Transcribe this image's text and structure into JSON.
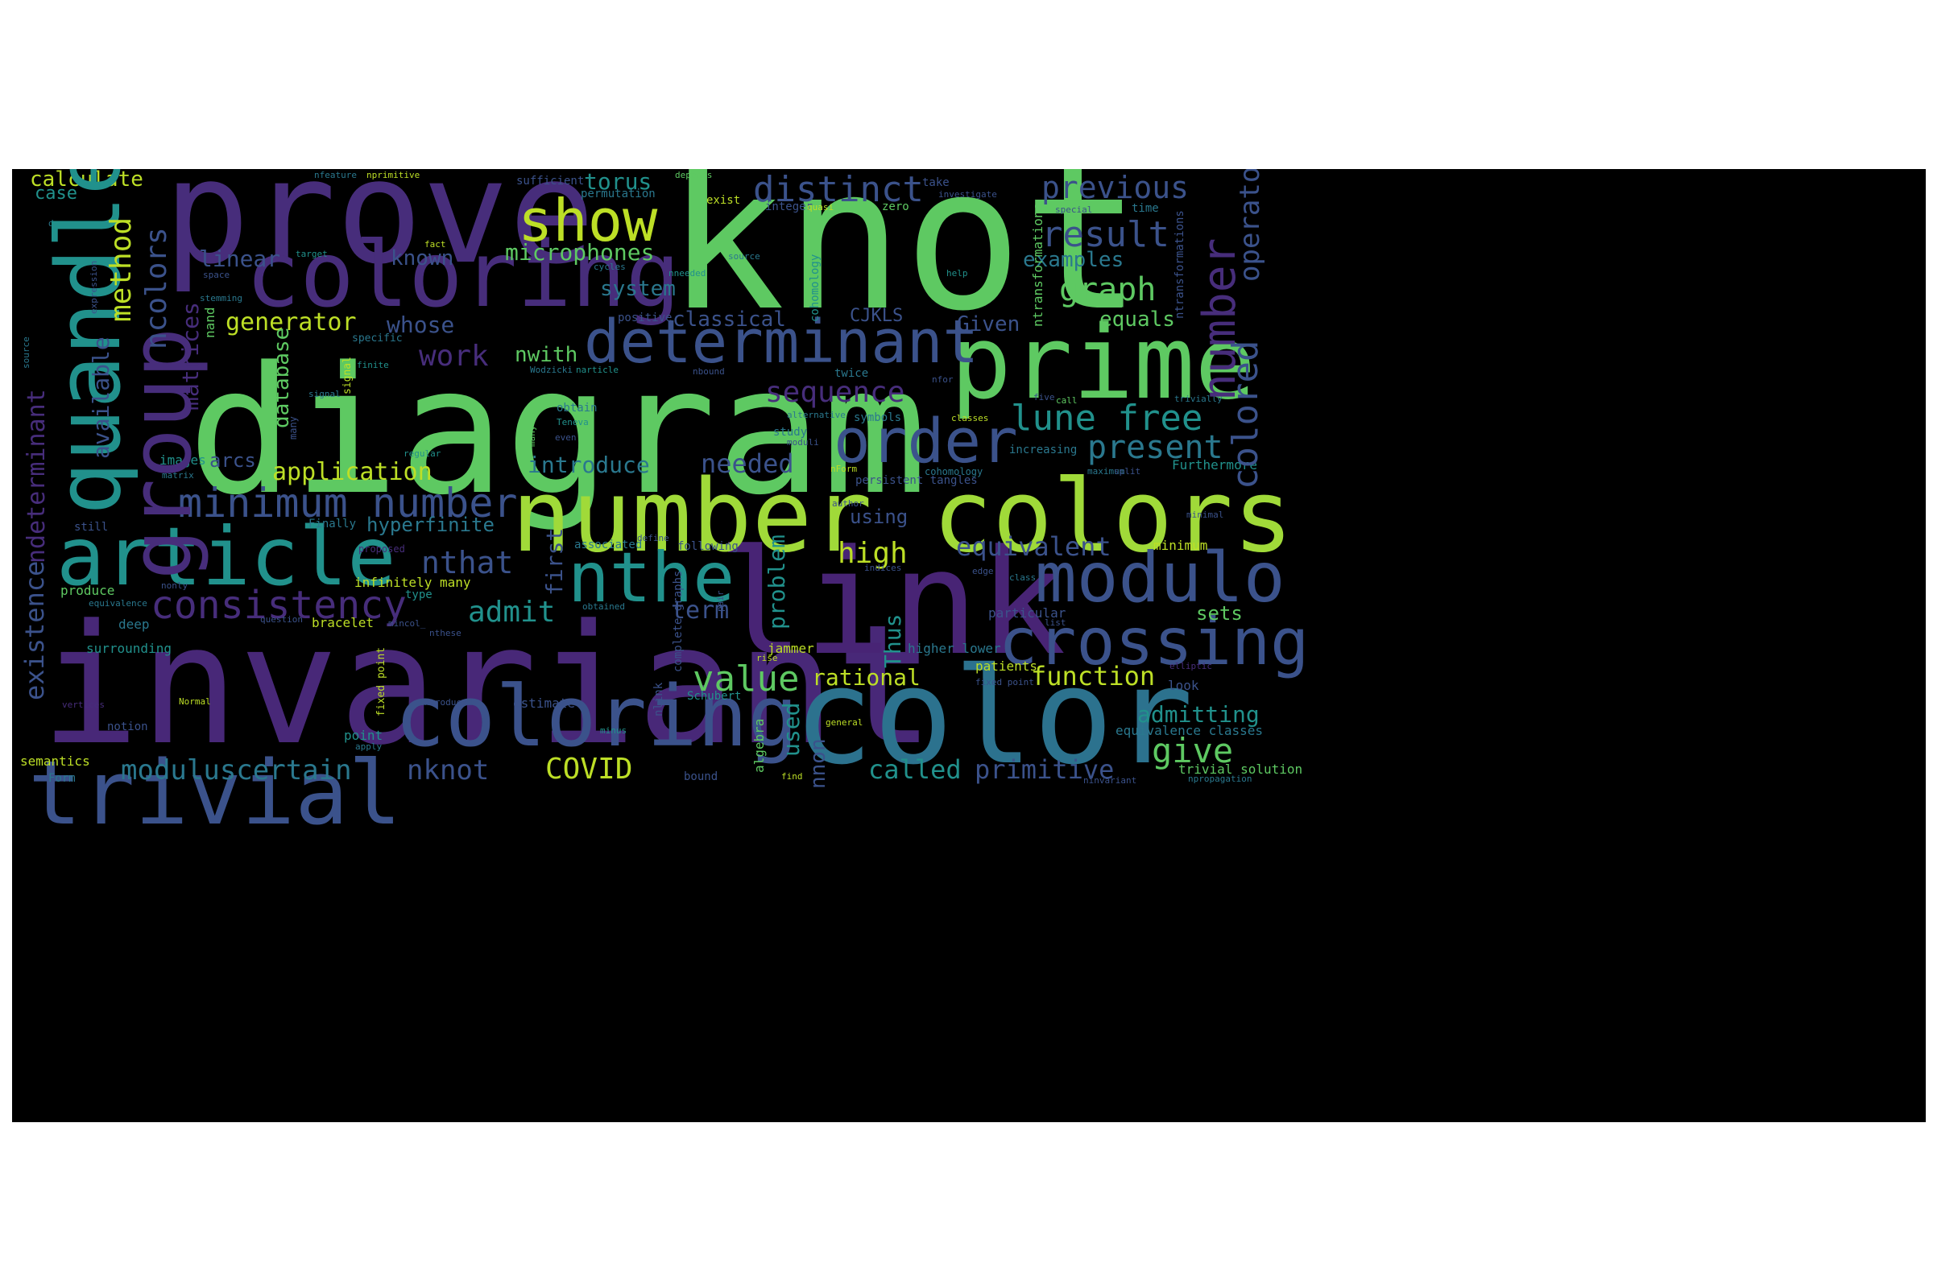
{
  "words": [
    {
      "text": "knot",
      "color": "#5ec962"
    },
    {
      "text": "diagram",
      "color": "#5ec962"
    },
    {
      "text": "invariant",
      "color": "#482878"
    },
    {
      "text": "prove",
      "color": "#472d7b"
    },
    {
      "text": "link",
      "color": "#482475"
    },
    {
      "text": "number colors",
      "color": "#a0da39"
    },
    {
      "text": "color",
      "color": "#2c728e"
    },
    {
      "text": "coloring",
      "color": "#472d7b"
    },
    {
      "text": "prime",
      "color": "#5ec962"
    },
    {
      "text": "quandle",
      "color": "#21918c"
    },
    {
      "text": "group",
      "color": "#472d7b"
    },
    {
      "text": "trivial",
      "color": "#3b528b"
    },
    {
      "text": "coloring",
      "color": "#3b528b"
    },
    {
      "text": "article",
      "color": "#21918c"
    },
    {
      "text": "determinant",
      "color": "#3b528b"
    },
    {
      "text": "modulo",
      "color": "#3b528b"
    },
    {
      "text": "crossing",
      "color": "#3b528b"
    },
    {
      "text": "nthe",
      "color": "#21918c"
    },
    {
      "text": "order",
      "color": "#3b528b"
    },
    {
      "text": "show",
      "color": "#bddf26"
    },
    {
      "text": "minimum number",
      "color": "#3b528b"
    },
    {
      "text": "consistency",
      "color": "#472d7b"
    },
    {
      "text": "distinct",
      "color": "#3b528b"
    },
    {
      "text": "previous",
      "color": "#3b528b"
    },
    {
      "text": "result",
      "color": "#3b528b"
    },
    {
      "text": "graph",
      "color": "#5ec962"
    },
    {
      "text": "lune free",
      "color": "#21918c"
    },
    {
      "text": "present",
      "color": "#2a788e"
    },
    {
      "text": "value",
      "color": "#5ec962"
    },
    {
      "text": "give",
      "color": "#5ec962"
    },
    {
      "text": "number",
      "color": "#472d7b"
    },
    {
      "text": "colored",
      "color": "#3b528b"
    },
    {
      "text": "operator",
      "color": "#3b528b"
    },
    {
      "text": "method",
      "color": "#bddf26"
    },
    {
      "text": "ncolors",
      "color": "#3b528b"
    },
    {
      "text": "sequence",
      "color": "#472d7b"
    },
    {
      "text": "work",
      "color": "#472d7b"
    },
    {
      "text": "nthat",
      "color": "#3b528b"
    },
    {
      "text": "admit",
      "color": "#21918c"
    },
    {
      "text": "high",
      "color": "#bddf26"
    },
    {
      "text": "equivalent",
      "color": "#3b528b"
    },
    {
      "text": "function",
      "color": "#bddf26"
    },
    {
      "text": "primitive",
      "color": "#3b528b"
    },
    {
      "text": "called",
      "color": "#21918c"
    },
    {
      "text": "COVID",
      "color": "#bddf26"
    },
    {
      "text": "nknot",
      "color": "#3b528b"
    },
    {
      "text": "moduluscertain",
      "color": "#2a788e"
    },
    {
      "text": "term",
      "color": "#3b528b"
    },
    {
      "text": "rational",
      "color": "#bddf26"
    },
    {
      "text": "admitting",
      "color": "#21918c"
    },
    {
      "text": "needed",
      "color": "#3b528b"
    },
    {
      "text": "introduce",
      "color": "#2a788e"
    },
    {
      "text": "application",
      "color": "#bddf26"
    },
    {
      "text": "generator",
      "color": "#bddf26"
    },
    {
      "text": "whose",
      "color": "#3b528b"
    },
    {
      "text": "microphones",
      "color": "#5ec962"
    },
    {
      "text": "torus",
      "color": "#21918c"
    },
    {
      "text": "linear",
      "color": "#3b528b"
    },
    {
      "text": "known",
      "color": "#3b528b"
    },
    {
      "text": "system",
      "color": "#2a788e"
    },
    {
      "text": "classical",
      "color": "#3b528b"
    },
    {
      "text": "CJKLS",
      "color": "#3b528b"
    },
    {
      "text": "Given",
      "color": "#3b528b"
    },
    {
      "text": "equals",
      "color": "#5ec962"
    },
    {
      "text": "examples",
      "color": "#2a788e"
    },
    {
      "text": "calculate",
      "color": "#bddf26"
    },
    {
      "text": "case",
      "color": "#21918c"
    },
    {
      "text": "hyperfinite",
      "color": "#2a788e"
    },
    {
      "text": "using",
      "color": "#3b528b"
    },
    {
      "text": "sets",
      "color": "#5ec962"
    },
    {
      "text": "nwith",
      "color": "#5ec962"
    },
    {
      "text": "arcs",
      "color": "#3b528b"
    },
    {
      "text": "existence",
      "color": "#3b528b"
    },
    {
      "text": "ndeterminant",
      "color": "#472d7b"
    },
    {
      "text": "available",
      "color": "#3b528b"
    },
    {
      "text": "matrices",
      "color": "#472d7b"
    },
    {
      "text": "database",
      "color": "#5ec962"
    },
    {
      "text": "first",
      "color": "#3b528b"
    },
    {
      "text": "problem",
      "color": "#21918c"
    },
    {
      "text": "Thus",
      "color": "#21918c"
    },
    {
      "text": "used",
      "color": "#21918c"
    },
    {
      "text": "nnon",
      "color": "#3b528b"
    },
    {
      "text": "upper bound",
      "color": "#5ec962"
    },
    {
      "text": "trivial solution",
      "color": "#bddf26"
    },
    {
      "text": "infinitely many",
      "color": "#2a788e"
    },
    {
      "text": "deep",
      "color": "#21918c"
    },
    {
      "text": "surrounding",
      "color": "#5ec962"
    },
    {
      "text": "produce",
      "color": "#bddf26"
    },
    {
      "text": "semantics",
      "color": "#2a788e"
    },
    {
      "text": "Form",
      "color": "#3b528b"
    },
    {
      "text": "notion",
      "color": "#21918c"
    },
    {
      "text": "point",
      "color": "#bddf26"
    },
    {
      "text": "bracelet",
      "color": "#3b528b"
    },
    {
      "text": "estimate",
      "color": "#bddf26"
    },
    {
      "text": "jammer",
      "color": "#bddf26"
    },
    {
      "text": "patients",
      "color": "#2a788e"
    },
    {
      "text": "higher lower",
      "color": "#3b528b"
    },
    {
      "text": "look",
      "color": "#2a788e"
    },
    {
      "text": "equivalence classes",
      "color": "#3b528b"
    },
    {
      "text": "particular",
      "color": "#21918c"
    },
    {
      "text": "Furthermore",
      "color": "#bddf26"
    },
    {
      "text": "minimum",
      "color": "#2a788e"
    },
    {
      "text": "increasing",
      "color": "#3b528b"
    },
    {
      "text": "still",
      "color": "#21918c"
    },
    {
      "text": "images",
      "color": "#2a788e"
    },
    {
      "text": "Finally",
      "color": "#21918c"
    },
    {
      "text": "type",
      "color": "#2a788e"
    },
    {
      "text": "associated",
      "color": "#3b528b"
    },
    {
      "text": "following",
      "color": "#21918c"
    },
    {
      "text": "Schubert",
      "color": "#5ec962"
    },
    {
      "text": "algebra",
      "color": "#2a788e"
    },
    {
      "text": "obtain",
      "color": "#2a788e"
    },
    {
      "text": "symbols",
      "color": "#2a788e"
    },
    {
      "text": "study",
      "color": "#bddf26"
    },
    {
      "text": "exist",
      "color": "#5ec962"
    },
    {
      "text": "zero",
      "color": "#3b528b"
    },
    {
      "text": "integer",
      "color": "#3b528b"
    },
    {
      "text": "sufficient",
      "color": "#2a788e"
    },
    {
      "text": "permutation",
      "color": "#3b528b"
    },
    {
      "text": "take",
      "color": "#2a788e"
    },
    {
      "text": "time",
      "color": "#3b528b"
    },
    {
      "text": "positive",
      "color": "#472d7b"
    },
    {
      "text": "proposed",
      "color": "#3b528b"
    },
    {
      "text": "persistent tangles",
      "color": "#2a788e"
    },
    {
      "text": "cohomology",
      "color": "#21918c"
    },
    {
      "text": "tangles",
      "color": "#5ec962"
    },
    {
      "text": "ntransformations",
      "color": "#3b528b"
    },
    {
      "text": "nfeature",
      "color": "#2a788e"
    },
    {
      "text": "nprimitive",
      "color": "#bddf26"
    },
    {
      "text": "depends",
      "color": "#5ec962"
    },
    {
      "text": "decrease",
      "color": "#2a788e"
    },
    {
      "text": "fact",
      "color": "#bddf26"
    },
    {
      "text": "target",
      "color": "#21918c"
    },
    {
      "text": "space",
      "color": "#3b528b"
    },
    {
      "text": "stemming",
      "color": "#2a788e"
    },
    {
      "text": "nand",
      "color": "#5ec962"
    },
    {
      "text": "expression",
      "color": "#3b528b"
    },
    {
      "text": "source",
      "color": "#2a788e"
    },
    {
      "text": "cycles",
      "color": "#2a788e"
    },
    {
      "text": "nneeded",
      "color": "#2a788e"
    },
    {
      "text": "help",
      "color": "#21918c"
    },
    {
      "text": "quasi",
      "color": "#21918c"
    },
    {
      "text": "investigate",
      "color": "#bddf26"
    },
    {
      "text": "special",
      "color": "#3b528b"
    },
    {
      "text": "specific",
      "color": "#3b528b"
    },
    {
      "text": "finite",
      "color": "#2a788e"
    },
    {
      "text": "mincol_p",
      "color": "#21918c"
    },
    {
      "text": "signal",
      "color": "#bddf26"
    },
    {
      "text": "moduli",
      "color": "#2a788e"
    },
    {
      "text": "many",
      "color": "#3b528b"
    },
    {
      "text": "Wodzicki",
      "color": "#5ec962"
    },
    {
      "text": "narticle",
      "color": "#2a788e"
    },
    {
      "text": "nbound",
      "color": "#21918c"
    },
    {
      "text": "twice",
      "color": "#3b528b"
    },
    {
      "text": "nfor",
      "color": "#2a788e"
    },
    {
      "text": "five",
      "color": "#3b528b"
    },
    {
      "text": "call",
      "color": "#3b528b"
    },
    {
      "text": "trivially",
      "color": "#5ec962"
    },
    {
      "text": "alternative",
      "color": "#2a788e"
    },
    {
      "text": "classes",
      "color": "#2a788e"
    },
    {
      "text": "Teneva",
      "color": "#bddf26"
    },
    {
      "text": "even",
      "color": "#21918c"
    },
    {
      "text": "regular",
      "color": "#3b528b"
    },
    {
      "text": "nForm",
      "color": "#21918c"
    },
    {
      "text": "maximum",
      "color": "#bddf26"
    },
    {
      "text": "split",
      "color": "#2a788e"
    },
    {
      "text": "matrix",
      "color": "#3b528b"
    },
    {
      "text": "author",
      "color": "#2a788e"
    },
    {
      "text": "minimal",
      "color": "#3b528b"
    },
    {
      "text": "define",
      "color": "#3b528b"
    },
    {
      "text": "indices",
      "color": "#3b528b"
    },
    {
      "text": "class",
      "color": "#3b528b"
    },
    {
      "text": "edge",
      "color": "#2a788e"
    },
    {
      "text": "pair",
      "color": "#3b528b"
    },
    {
      "text": "nonly",
      "color": "#3b528b"
    },
    {
      "text": "equivalence",
      "color": "#3b528b"
    },
    {
      "text": "obtained",
      "color": "#2a788e"
    },
    {
      "text": "question",
      "color": "#2a788e"
    },
    {
      "text": "nthese",
      "color": "#3b528b"
    },
    {
      "text": "list",
      "color": "#3b528b"
    },
    {
      "text": "nlink",
      "color": "#3b528b"
    },
    {
      "text": "complete graphs",
      "color": "#3b528b"
    },
    {
      "text": "rise",
      "color": "#3b528b"
    },
    {
      "text": "fixed point",
      "color": "#bddf26"
    },
    {
      "text": "elliptic",
      "color": "#bddf26"
    },
    {
      "text": "vertices",
      "color": "#3b528b"
    },
    {
      "text": "Normal",
      "color": "#472d7b"
    },
    {
      "text": "introduced",
      "color": "#472d7b"
    },
    {
      "text": "general",
      "color": "#bddf26"
    },
    {
      "text": "minus",
      "color": "#3b528b"
    },
    {
      "text": "apply",
      "color": "#bddf26"
    },
    {
      "text": "bound",
      "color": "#21918c"
    },
    {
      "text": "find",
      "color": "#2a788e"
    },
    {
      "text": "ninvariant",
      "color": "#3b528b"
    },
    {
      "text": "npropagation",
      "color": "#bddf26"
    },
    {
      "text": "mincol_",
      "color": "#3b528b"
    },
    {
      "text": "involving",
      "color": "#2a788e"
    },
    {
      "text": "uses",
      "color": "#3b528b"
    }
  ]
}
